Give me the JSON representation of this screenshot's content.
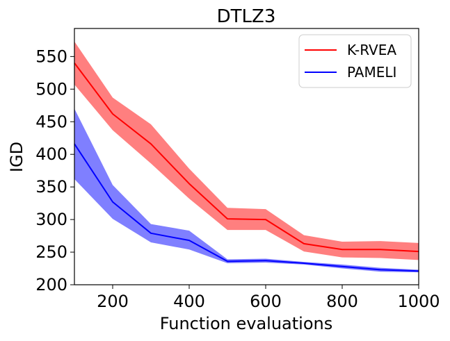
{
  "chart_data": {
    "type": "line",
    "title": "DTLZ3",
    "xlabel": "Function evaluations",
    "ylabel": "IGD",
    "xlim": [
      100,
      1000
    ],
    "ylim": [
      200,
      593
    ],
    "x_ticks": [
      200,
      400,
      600,
      800,
      1000
    ],
    "y_ticks": [
      200,
      250,
      300,
      350,
      400,
      450,
      500,
      550
    ],
    "legend_position": "top-right",
    "x": [
      100,
      200,
      300,
      400,
      500,
      600,
      700,
      800,
      900,
      1000
    ],
    "series": [
      {
        "name": "K-RVEA",
        "color": "#ff0000",
        "fill": "#ff0000",
        "mean": [
          540,
          462,
          416,
          355,
          301,
          300,
          263,
          254,
          254,
          251
        ],
        "upper": [
          573,
          487,
          446,
          378,
          318,
          316,
          276,
          266,
          267,
          264
        ],
        "lower": [
          507,
          437,
          386,
          332,
          284,
          284,
          251,
          242,
          241,
          238
        ]
      },
      {
        "name": "PAMELI",
        "color": "#0000ff",
        "fill": "#0000ff",
        "mean": [
          416,
          327,
          279,
          268,
          236,
          237,
          233,
          228,
          223,
          221
        ],
        "upper": [
          470,
          353,
          293,
          283,
          239,
          240,
          235,
          231,
          226,
          223
        ],
        "lower": [
          362,
          301,
          265,
          254,
          233,
          234,
          231,
          225,
          220,
          219
        ]
      }
    ]
  }
}
